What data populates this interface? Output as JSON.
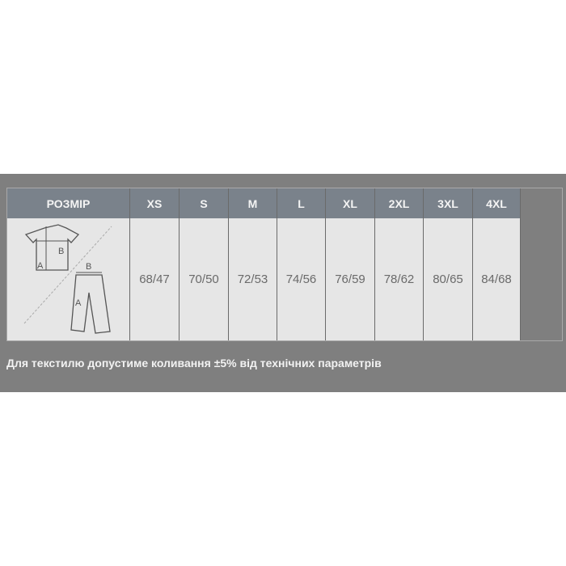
{
  "table": {
    "header_label": "РОЗМІР",
    "sizes": [
      "XS",
      "S",
      "M",
      "L",
      "XL",
      "2XL",
      "3XL",
      "4XL"
    ],
    "values": [
      "68/47",
      "70/50",
      "72/53",
      "74/56",
      "76/59",
      "78/62",
      "80/65",
      "84/68"
    ],
    "diagram_labels": {
      "shirt_a": "A",
      "shirt_b": "B",
      "pants_a": "A",
      "pants_b": "B"
    }
  },
  "note": "Для текстилю допустиме коливання ±5% від технічних параметрів"
}
